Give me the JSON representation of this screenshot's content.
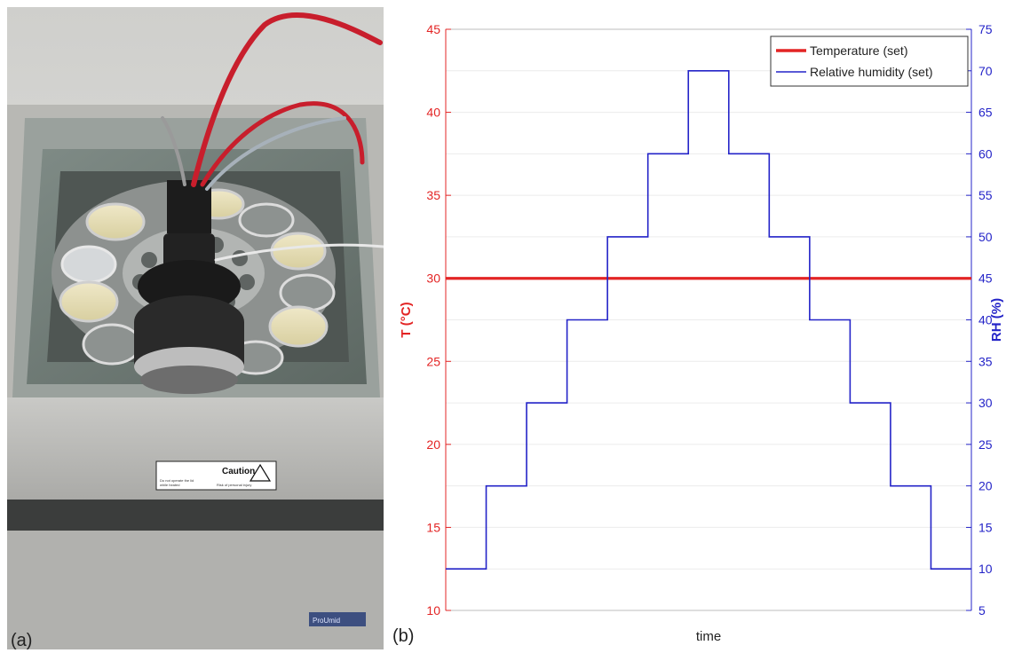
{
  "panels": {
    "a_label": "(a)",
    "b_label": "(b)"
  },
  "device": {
    "label_title": "Caution",
    "label_lines": [
      "Do not operate the lid",
      "while heated",
      "Risk of personal injury"
    ],
    "brand": "ProUmid"
  },
  "chart_data": {
    "type": "line",
    "xlabel": "time",
    "y_left": {
      "label": "T (°C)",
      "range": [
        10,
        45
      ],
      "ticks": [
        10,
        15,
        20,
        25,
        30,
        35,
        40,
        45
      ],
      "color": "#e32424"
    },
    "y_right": {
      "label": "RH (%)",
      "range": [
        5,
        75
      ],
      "ticks": [
        5,
        10,
        15,
        20,
        25,
        30,
        35,
        40,
        45,
        50,
        55,
        60,
        65,
        70,
        75
      ],
      "color": "#2424c8"
    },
    "x_range": [
      0,
      13
    ],
    "grid": true,
    "legend_position": "top-right",
    "series": [
      {
        "name": "Temperature (set)",
        "axis": "left",
        "color": "#e32424",
        "x": [
          0,
          13
        ],
        "y": [
          30,
          30
        ]
      },
      {
        "name": "Relative humidity (set)",
        "axis": "right",
        "color": "#2424c8",
        "step": true,
        "x": [
          0,
          1,
          2,
          3,
          4,
          5,
          6,
          7,
          8,
          9,
          10,
          11,
          12,
          13
        ],
        "y": [
          10,
          20,
          30,
          40,
          50,
          60,
          70,
          60,
          50,
          40,
          30,
          20,
          10,
          10
        ]
      }
    ]
  }
}
